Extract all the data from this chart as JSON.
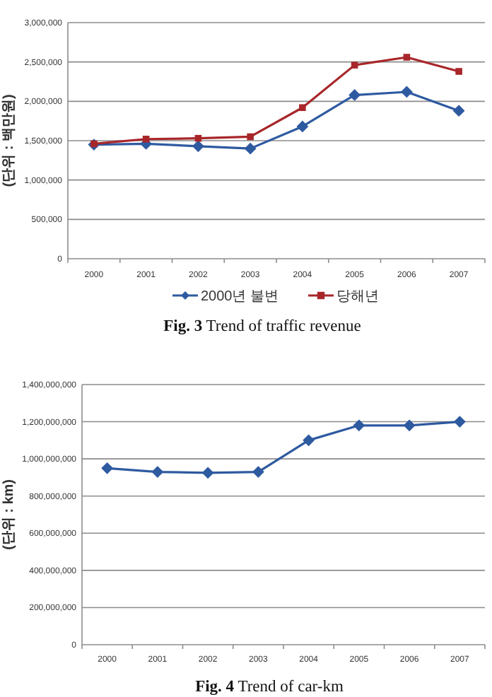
{
  "chart_data": [
    {
      "type": "line",
      "title": "**Fig. 3** Trend of traffic revenue",
      "ylabel": "(단위 : 백만원)",
      "categories": [
        "2000",
        "2001",
        "2002",
        "2003",
        "2004",
        "2005",
        "2006",
        "2007"
      ],
      "series": [
        {
          "name": "2000년 불변",
          "color": "#2e5aa0",
          "marker": "diamond",
          "values": [
            1450000,
            1460000,
            1430000,
            1400000,
            1680000,
            2080000,
            2120000,
            1880000
          ]
        },
        {
          "name": "당해년",
          "color": "#a8262a",
          "marker": "square",
          "values": [
            1460000,
            1520000,
            1530000,
            1550000,
            1920000,
            2460000,
            2560000,
            2380000
          ]
        }
      ],
      "ylim": [
        0,
        3000000
      ],
      "yticks": [
        {
          "value": 0,
          "label": "0"
        },
        {
          "value": 500000,
          "label": "500,000"
        },
        {
          "value": 1000000,
          "label": "1,000,000"
        },
        {
          "value": 1500000,
          "label": "1,500,000"
        },
        {
          "value": 2000000,
          "label": "2,000,000"
        },
        {
          "value": 2500000,
          "label": "2,500,000"
        },
        {
          "value": 3000000,
          "label": "3,000,000"
        }
      ],
      "grid": "y",
      "legend": "bottom"
    },
    {
      "type": "line",
      "title": "**Fig. 4** Trend of car-km",
      "ylabel": "(단위 : km)",
      "categories": [
        "2000",
        "2001",
        "2002",
        "2003",
        "2004",
        "2005",
        "2006",
        "2007"
      ],
      "series": [
        {
          "color": "#2e5aa0",
          "marker": "diamond",
          "values": [
            950000000,
            930000000,
            925000000,
            930000000,
            1100000000,
            1180000000,
            1180000000,
            1200000000
          ]
        }
      ],
      "ylim": [
        0,
        1400000000
      ],
      "yticks": [
        {
          "value": 0,
          "label": "0"
        },
        {
          "value": 200000000,
          "label": "200,000,000"
        },
        {
          "value": 400000000,
          "label": "400,000,000"
        },
        {
          "value": 600000000,
          "label": "600,000,000"
        },
        {
          "value": 800000000,
          "label": "800,000,000"
        },
        {
          "value": 1000000000,
          "label": "1,000,000,000"
        },
        {
          "value": 1200000000,
          "label": "1,200,000,000"
        },
        {
          "value": 1400000000,
          "label": "1,400,000,000"
        }
      ],
      "grid": "y",
      "legend": false
    }
  ]
}
